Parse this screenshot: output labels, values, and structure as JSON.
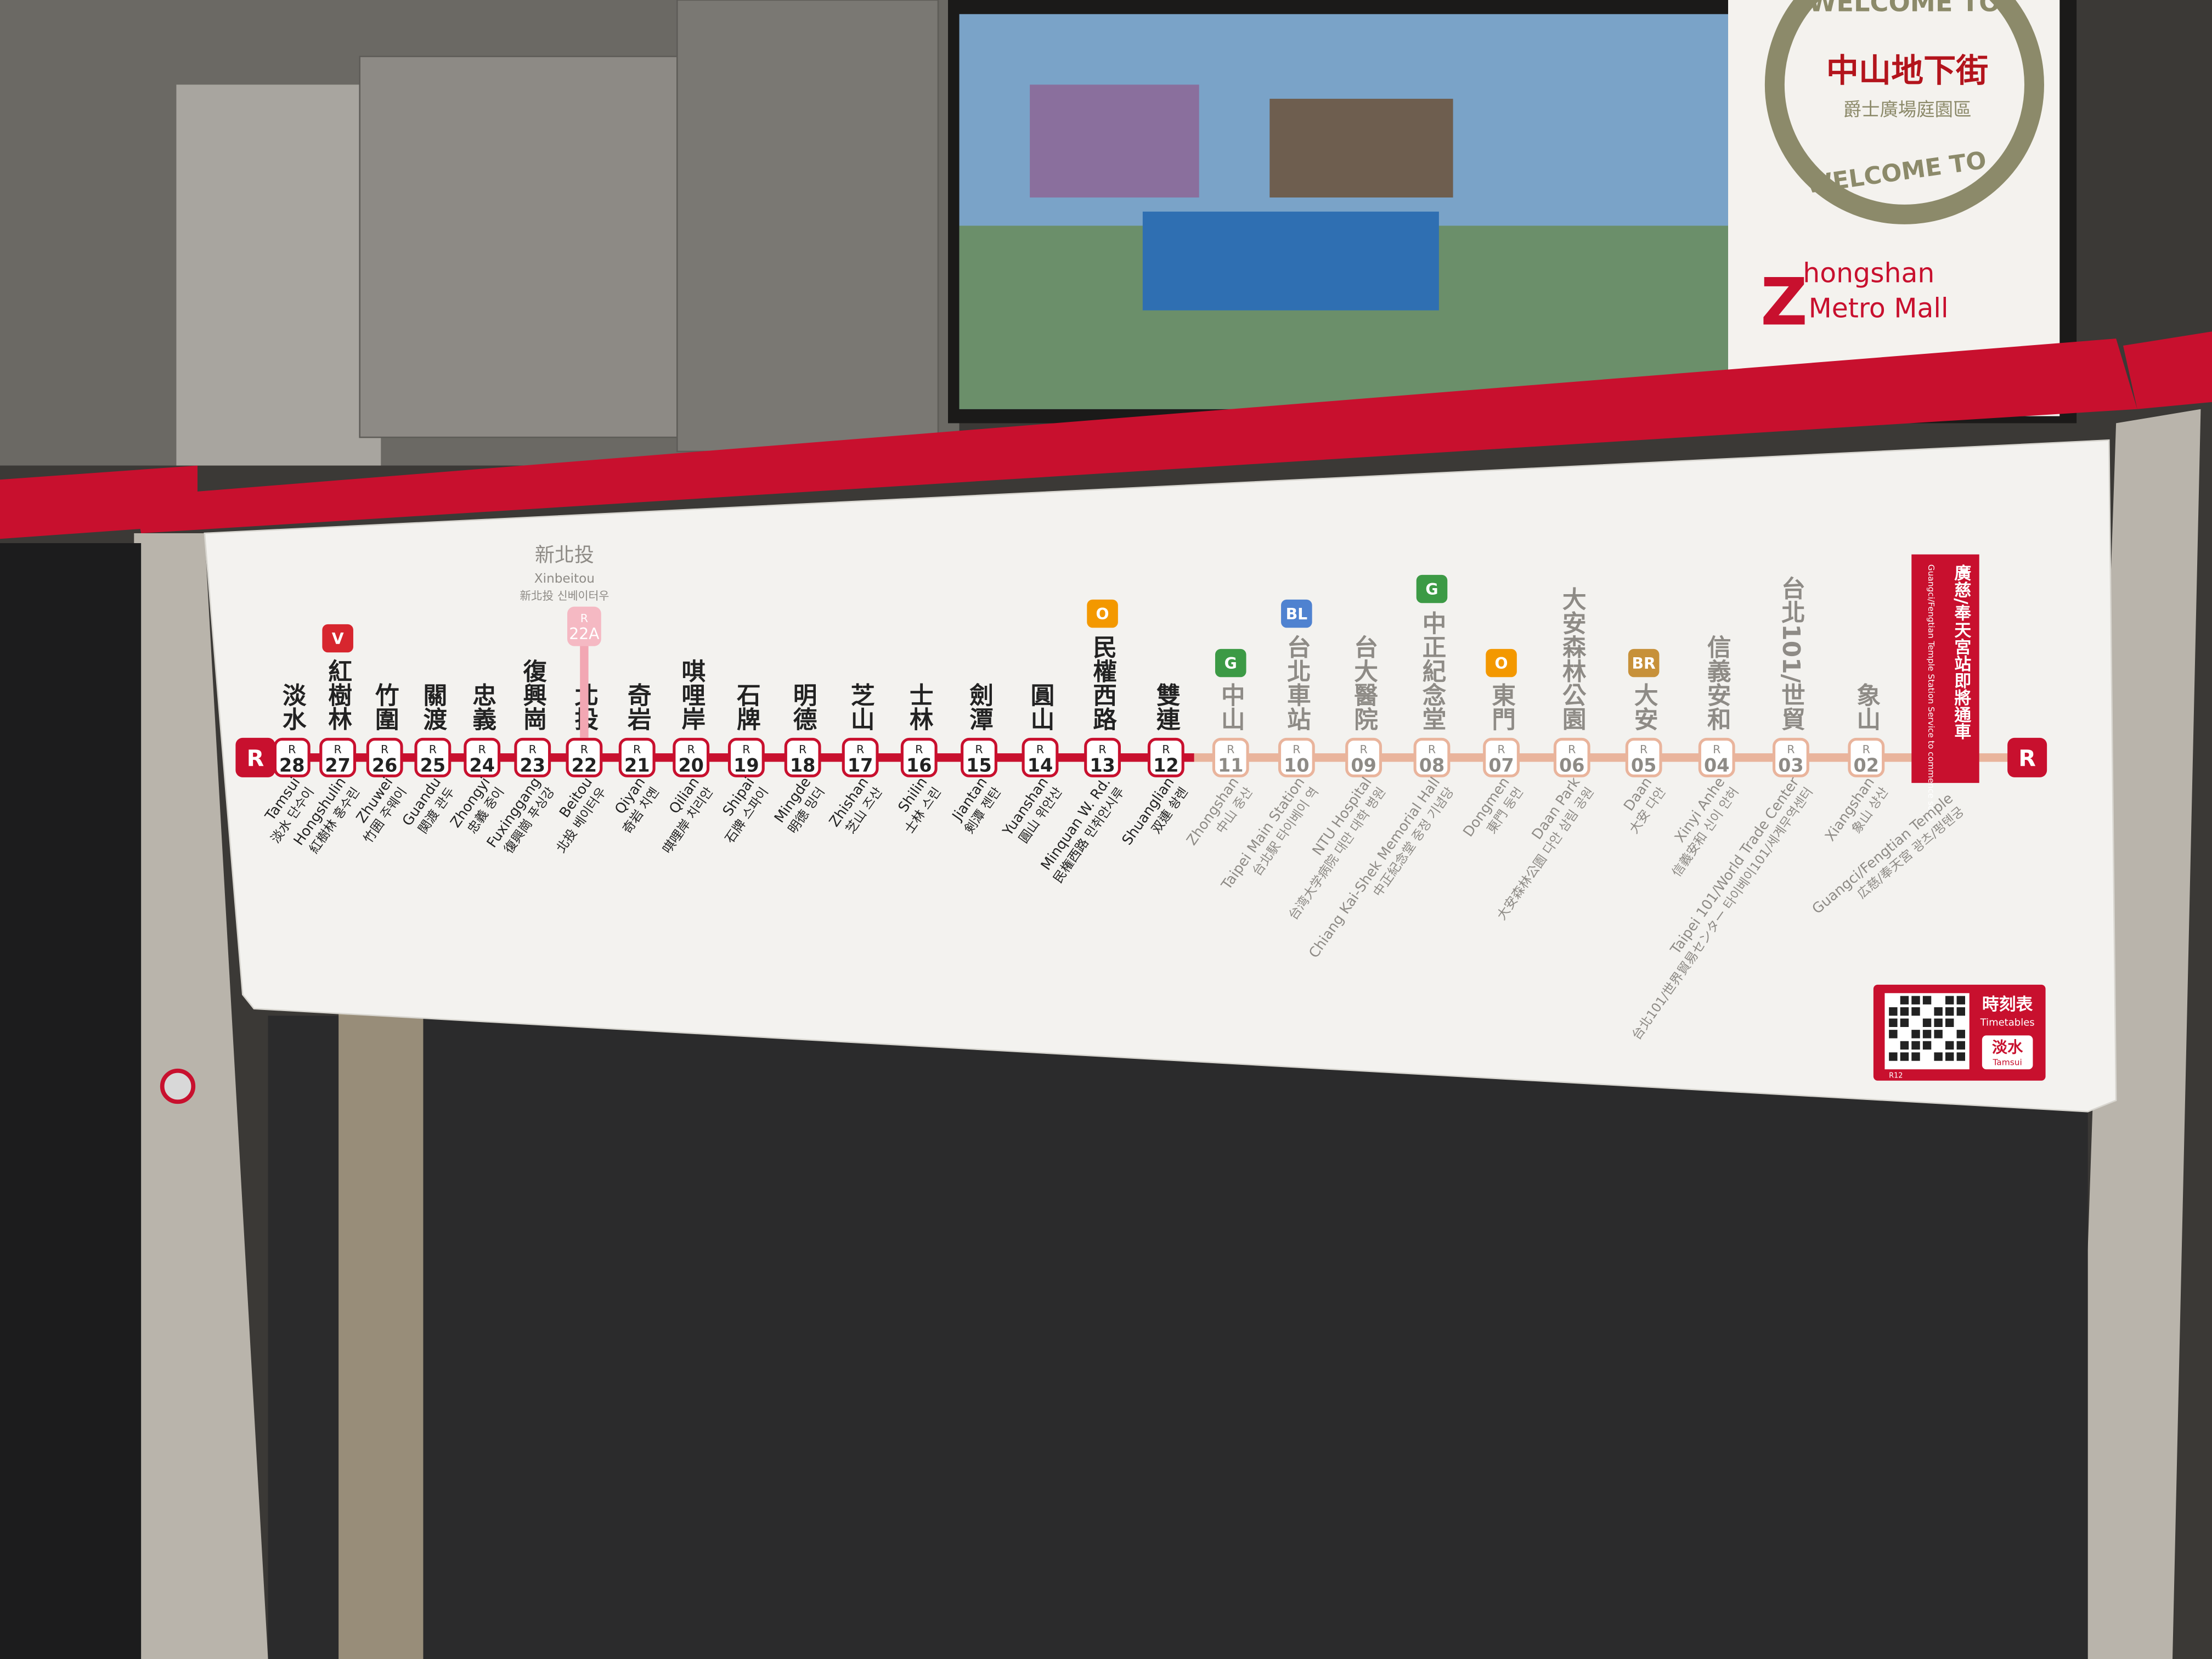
{
  "ad": {
    "welcome_top": "WELCOME TO",
    "title": "中山地下街",
    "subtitle": "爵士廣場庭園區",
    "welcome": "WELCOME TO",
    "brand_initial": "Z",
    "brand_line1": "hongshan",
    "brand_line2": "Metro Mall"
  },
  "route_map": {
    "line_letter": "R",
    "stations": [
      {
        "number": "28",
        "name": "淡水",
        "en": "Tamsui",
        "sub": "淡水 단수이"
      },
      {
        "number": "27",
        "name": "紅樹林",
        "en": "Hongshulin",
        "sub": "紅樹林 홍수린",
        "transfer": {
          "label": "V",
          "color": "#d7262e"
        }
      },
      {
        "number": "26",
        "name": "竹圍",
        "en": "Zhuwei",
        "sub": "竹囲 주웨이"
      },
      {
        "number": "25",
        "name": "關渡",
        "en": "Guandu",
        "sub": "関渡 관두"
      },
      {
        "number": "24",
        "name": "忠義",
        "en": "Zhongyi",
        "sub": "忠義 중이"
      },
      {
        "number": "23",
        "name": "復興崗",
        "en": "Fuxinggang",
        "sub": "復興崗 푸싱강"
      },
      {
        "number": "22",
        "name": "北投",
        "en": "Beitou",
        "sub": "北投 베이터우"
      },
      {
        "number": "21",
        "name": "奇岩",
        "en": "Qiyan",
        "sub": "奇岩 치옌"
      },
      {
        "number": "20",
        "name": "唭哩岸",
        "en": "Qilian",
        "sub": "唭哩岸 치리안"
      },
      {
        "number": "19",
        "name": "石牌",
        "en": "Shipai",
        "sub": "石牌 스파이"
      },
      {
        "number": "18",
        "name": "明德",
        "en": "Mingde",
        "sub": "明徳 밍더"
      },
      {
        "number": "17",
        "name": "芝山",
        "en": "Zhishan",
        "sub": "芝山 즈산"
      },
      {
        "number": "16",
        "name": "士林",
        "en": "Shilin",
        "sub": "士林 스린"
      },
      {
        "number": "15",
        "name": "劍潭",
        "en": "Jiantan",
        "sub": "剣潭 젠탄"
      },
      {
        "number": "14",
        "name": "圓山",
        "en": "Yuanshan",
        "sub": "圓山 위안산"
      },
      {
        "number": "13",
        "name": "民權西路",
        "en": "Minquan W. Rd.",
        "sub": "民権西路 민취안시루",
        "transfer": {
          "label": "O",
          "color": "#f39800"
        }
      },
      {
        "number": "12",
        "name": "雙連",
        "en": "Shuanglian",
        "sub": "双連 솽롄"
      },
      {
        "number": "11",
        "name": "中山",
        "en": "Zhongshan",
        "sub": "中山 중산",
        "transfer": {
          "label": "G",
          "color": "#3c9a45"
        }
      },
      {
        "number": "10",
        "name": "台北車站",
        "en": "Taipei Main Station",
        "sub": "台北駅 타이베이 역",
        "transfer": {
          "label": "BL",
          "color": "#4f82d0"
        }
      },
      {
        "number": "09",
        "name": "台大醫院",
        "en": "NTU Hospital",
        "sub": "台湾大学病院 대만 대학 병원"
      },
      {
        "number": "08",
        "name": "中正紀念堂",
        "en": "Chiang Kai-Shek Memorial Hall",
        "sub": "中正紀念堂 중정 기념당",
        "transfer": {
          "label": "G",
          "color": "#3c9a45"
        }
      },
      {
        "number": "07",
        "name": "東門",
        "en": "Dongmen",
        "sub": "東門 둥먼",
        "transfer": {
          "label": "O",
          "color": "#f39800"
        }
      },
      {
        "number": "06",
        "name": "大安森林公園",
        "en": "Daan Park",
        "sub": "大安森林公園 다안 삼림 공원"
      },
      {
        "number": "05",
        "name": "大安",
        "en": "Daan",
        "sub": "大安 다안",
        "transfer": {
          "label": "BR",
          "color": "#c7913a"
        }
      },
      {
        "number": "04",
        "name": "信義安和",
        "en": "Xinyi Anhe",
        "sub": "信義安和 신이 안허"
      },
      {
        "number": "03",
        "name": "台北101/世貿",
        "en": "Taipei 101/World Trade Center",
        "sub": "台北101/世界貿易センター 타이베이101/세계무역센터"
      },
      {
        "number": "02",
        "name": "象山",
        "en": "Xiangshan",
        "sub": "象山 샹산"
      }
    ],
    "branch": {
      "number": "22A",
      "name": "新北投",
      "en": "Xinbeitou",
      "sub": "新北投 신베이터우"
    },
    "upcoming": {
      "notice": "廣慈/奉天宮站即將通車",
      "notice_en": "Guangci/Fengtian Temple Station Service to commence soon",
      "en": "Guangci/Fengtian Temple",
      "sub": "広慈/奉天宮 광츠/펑톈궁"
    },
    "timetable": {
      "title": "時刻表",
      "title_en": "Timetables",
      "destination": "淡水",
      "destination_en": "Tamsui",
      "qr_code": "R12"
    }
  }
}
